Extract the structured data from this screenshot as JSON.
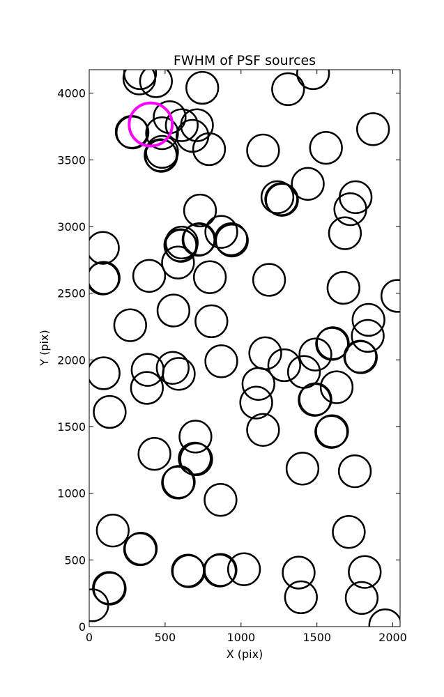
{
  "chart_data": {
    "type": "scatter",
    "title": "FWHM of PSF sources",
    "xlabel": "X (pix)",
    "ylabel": "Y (pix)",
    "xlim": [
      0,
      2048
    ],
    "ylim": [
      0,
      4176
    ],
    "xticks": [
      0,
      500,
      1000,
      1500,
      2000
    ],
    "yticks": [
      0,
      500,
      1000,
      1500,
      2000,
      2500,
      3000,
      3500,
      4000
    ],
    "grid": false,
    "marker_radius_pix": 105,
    "series": [
      {
        "color": "#000000",
        "points": [
          {
            "x": 20,
            "y": 160
          },
          {
            "x": 130,
            "y": 290
          },
          {
            "x": 135,
            "y": 285
          },
          {
            "x": 155,
            "y": 720
          },
          {
            "x": 335,
            "y": 580
          },
          {
            "x": 340,
            "y": 585
          },
          {
            "x": 650,
            "y": 420
          },
          {
            "x": 655,
            "y": 415
          },
          {
            "x": 860,
            "y": 420
          },
          {
            "x": 865,
            "y": 425
          },
          {
            "x": 1020,
            "y": 430
          },
          {
            "x": 1380,
            "y": 405
          },
          {
            "x": 1395,
            "y": 220
          },
          {
            "x": 1795,
            "y": 215
          },
          {
            "x": 1815,
            "y": 410
          },
          {
            "x": 1710,
            "y": 710
          },
          {
            "x": 1950,
            "y": 10
          },
          {
            "x": 585,
            "y": 1080
          },
          {
            "x": 590,
            "y": 1085
          },
          {
            "x": 865,
            "y": 950
          },
          {
            "x": 430,
            "y": 1295
          },
          {
            "x": 695,
            "y": 1260
          },
          {
            "x": 705,
            "y": 1255
          },
          {
            "x": 700,
            "y": 1425
          },
          {
            "x": 1405,
            "y": 1185
          },
          {
            "x": 1750,
            "y": 1165
          },
          {
            "x": 135,
            "y": 1610
          },
          {
            "x": 95,
            "y": 1900
          },
          {
            "x": 380,
            "y": 1790
          },
          {
            "x": 385,
            "y": 1925
          },
          {
            "x": 550,
            "y": 1940
          },
          {
            "x": 590,
            "y": 1895
          },
          {
            "x": 870,
            "y": 1990
          },
          {
            "x": 1100,
            "y": 1680
          },
          {
            "x": 1115,
            "y": 1820
          },
          {
            "x": 1145,
            "y": 1475
          },
          {
            "x": 1160,
            "y": 2050
          },
          {
            "x": 1285,
            "y": 1960
          },
          {
            "x": 1415,
            "y": 1910
          },
          {
            "x": 1490,
            "y": 2040
          },
          {
            "x": 1490,
            "y": 1705
          },
          {
            "x": 1485,
            "y": 1700
          },
          {
            "x": 1595,
            "y": 1460
          },
          {
            "x": 1600,
            "y": 1465
          },
          {
            "x": 1630,
            "y": 1795
          },
          {
            "x": 1600,
            "y": 2120
          },
          {
            "x": 1605,
            "y": 2125
          },
          {
            "x": 1790,
            "y": 2020
          },
          {
            "x": 1785,
            "y": 2025
          },
          {
            "x": 1835,
            "y": 2180
          },
          {
            "x": 1840,
            "y": 2300
          },
          {
            "x": 2030,
            "y": 2480
          },
          {
            "x": 1675,
            "y": 2540
          },
          {
            "x": 270,
            "y": 2260
          },
          {
            "x": 555,
            "y": 2370
          },
          {
            "x": 805,
            "y": 2290
          },
          {
            "x": 1185,
            "y": 2600
          },
          {
            "x": 90,
            "y": 2610
          },
          {
            "x": 95,
            "y": 2615
          },
          {
            "x": 90,
            "y": 2840
          },
          {
            "x": 395,
            "y": 2630
          },
          {
            "x": 585,
            "y": 2730
          },
          {
            "x": 600,
            "y": 2860
          },
          {
            "x": 605,
            "y": 2855
          },
          {
            "x": 610,
            "y": 2880
          },
          {
            "x": 720,
            "y": 2900
          },
          {
            "x": 725,
            "y": 2905
          },
          {
            "x": 795,
            "y": 2620
          },
          {
            "x": 730,
            "y": 3120
          },
          {
            "x": 870,
            "y": 2960
          },
          {
            "x": 935,
            "y": 2905
          },
          {
            "x": 940,
            "y": 2895
          },
          {
            "x": 1240,
            "y": 3220
          },
          {
            "x": 1265,
            "y": 3205
          },
          {
            "x": 1270,
            "y": 3200
          },
          {
            "x": 1440,
            "y": 3320
          },
          {
            "x": 1685,
            "y": 2950
          },
          {
            "x": 1720,
            "y": 3130
          },
          {
            "x": 1755,
            "y": 3220
          },
          {
            "x": 1560,
            "y": 3590
          },
          {
            "x": 1145,
            "y": 3570
          },
          {
            "x": 790,
            "y": 3580
          },
          {
            "x": 1870,
            "y": 3730
          },
          {
            "x": 280,
            "y": 3710
          },
          {
            "x": 285,
            "y": 3705
          },
          {
            "x": 470,
            "y": 3535
          },
          {
            "x": 475,
            "y": 3530
          },
          {
            "x": 480,
            "y": 3560
          },
          {
            "x": 480,
            "y": 3700
          },
          {
            "x": 530,
            "y": 3820
          },
          {
            "x": 610,
            "y": 3760
          },
          {
            "x": 680,
            "y": 3680
          },
          {
            "x": 710,
            "y": 3760
          },
          {
            "x": 330,
            "y": 4110
          },
          {
            "x": 335,
            "y": 4150
          },
          {
            "x": 440,
            "y": 4090
          },
          {
            "x": 745,
            "y": 4040
          },
          {
            "x": 1310,
            "y": 4030
          },
          {
            "x": 1475,
            "y": 4150
          }
        ]
      },
      {
        "color": "#ff00ff",
        "points": [
          {
            "x": 405,
            "y": 3765
          }
        ]
      }
    ]
  }
}
